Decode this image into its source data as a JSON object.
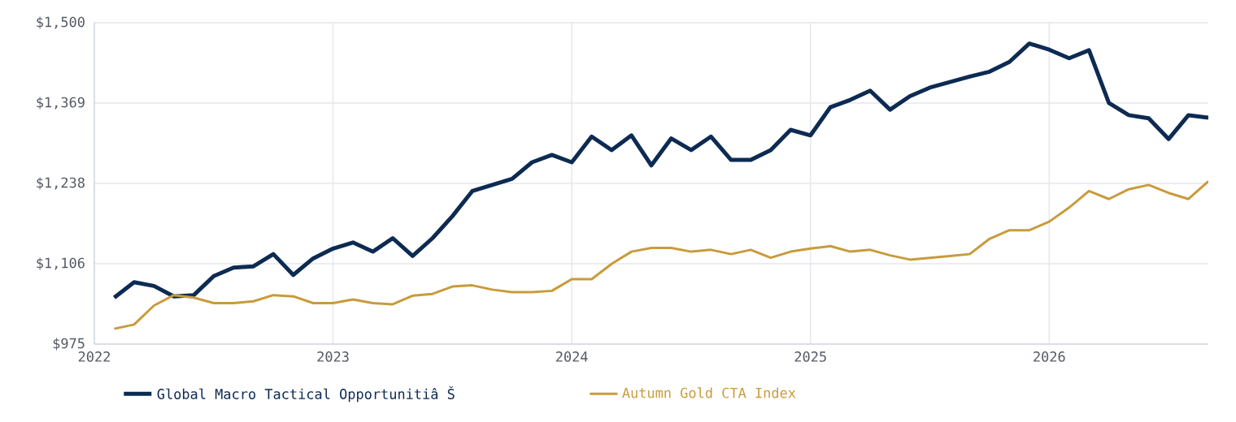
{
  "chart_data": {
    "type": "line",
    "x": [
      "2022-02",
      "2022-03",
      "2022-04",
      "2022-05",
      "2022-06",
      "2022-07",
      "2022-08",
      "2022-09",
      "2022-10",
      "2022-11",
      "2022-12",
      "2023-01",
      "2023-02",
      "2023-03",
      "2023-04",
      "2023-05",
      "2023-06",
      "2023-07",
      "2023-08",
      "2023-09",
      "2023-10",
      "2023-11",
      "2023-12",
      "2024-01",
      "2024-02",
      "2024-03",
      "2024-04",
      "2024-05",
      "2024-06",
      "2024-07",
      "2024-08",
      "2024-09",
      "2024-10",
      "2024-11",
      "2024-12",
      "2025-01",
      "2025-02",
      "2025-03",
      "2025-04",
      "2025-05",
      "2025-06",
      "2025-07",
      "2025-08",
      "2025-09",
      "2025-10",
      "2025-11",
      "2025-12",
      "2026-01",
      "2026-02",
      "2026-03",
      "2026-04",
      "2026-05",
      "2026-06",
      "2026-07",
      "2026-08",
      "2026-09"
    ],
    "series": [
      {
        "name": "Global Macro Tactical Opportunitiâ Š",
        "color": "#0d2b52",
        "values": [
          1051,
          1076,
          1070,
          1053,
          1055,
          1086,
          1100,
          1102,
          1122,
          1088,
          1115,
          1131,
          1141,
          1126,
          1148,
          1119,
          1148,
          1184,
          1225,
          1235,
          1245,
          1272,
          1284,
          1272,
          1314,
          1292,
          1316,
          1267,
          1311,
          1292,
          1314,
          1276,
          1276,
          1292,
          1325,
          1316,
          1362,
          1374,
          1389,
          1358,
          1380,
          1394,
          1403,
          1412,
          1420,
          1436,
          1466,
          1456,
          1442,
          1455,
          1369,
          1349,
          1344,
          1310,
          1349,
          1345
        ]
      },
      {
        "name": "Autumn Gold CTA Index",
        "color": "#c89b3c",
        "values": [
          1000,
          1007,
          1038,
          1055,
          1051,
          1042,
          1042,
          1045,
          1055,
          1053,
          1042,
          1042,
          1048,
          1042,
          1040,
          1054,
          1057,
          1069,
          1071,
          1064,
          1060,
          1060,
          1062,
          1081,
          1081,
          1106,
          1126,
          1132,
          1132,
          1126,
          1129,
          1122,
          1129,
          1116,
          1126,
          1131,
          1135,
          1126,
          1129,
          1120,
          1113,
          1116,
          1119,
          1122,
          1147,
          1161,
          1161,
          1175,
          1198,
          1225,
          1212,
          1228,
          1235,
          1222,
          1212,
          1241
        ]
      }
    ],
    "xlim": [
      "2022-01",
      "2026-09"
    ],
    "xticks": [
      "2022",
      "2023",
      "2024",
      "2025",
      "2026"
    ],
    "ylim": [
      975,
      1500
    ],
    "yticks": [
      {
        "value": 975,
        "label": "$975"
      },
      {
        "value": 1106.25,
        "label": "$1,106"
      },
      {
        "value": 1237.5,
        "label": "$1,238"
      },
      {
        "value": 1368.75,
        "label": "$1,369"
      },
      {
        "value": 1500,
        "label": "$1,500"
      }
    ],
    "grid": true,
    "legend": "bottom",
    "marker": "none",
    "line_style": "solid"
  }
}
